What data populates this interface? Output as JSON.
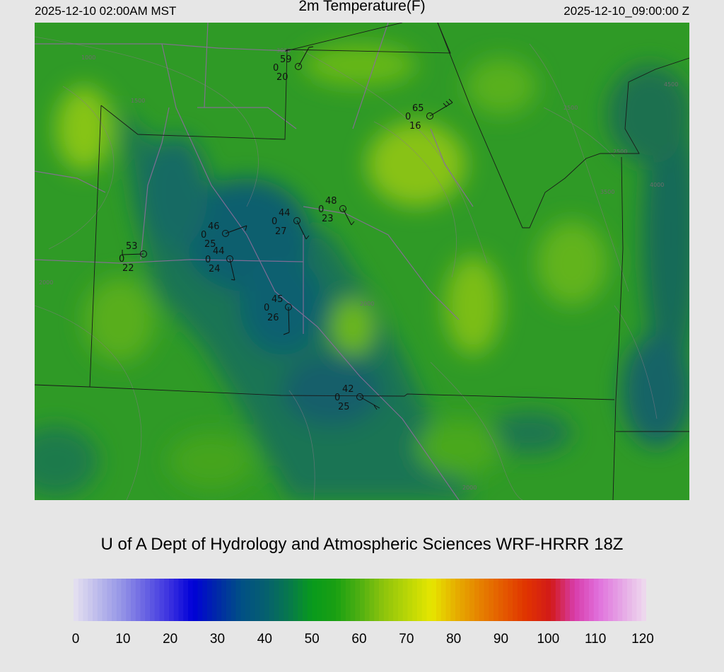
{
  "header": {
    "local_time": "2025-12-10 02:00AM MST",
    "title": "2m Temperature(F)",
    "valid_time": "2025-12-10_09:00:00 Z"
  },
  "credit": "U of A Dept of Hydrology and Atmospheric Sciences WRF-HRRR 18Z",
  "colorbar": {
    "min": 0,
    "max": 120,
    "ticks": [
      "0",
      "10",
      "20",
      "30",
      "40",
      "50",
      "60",
      "70",
      "80",
      "90",
      "100",
      "110",
      "120"
    ],
    "stops": [
      {
        "v": 0,
        "c": "#e6e2f0"
      },
      {
        "v": 10,
        "c": "#9595e6"
      },
      {
        "v": 20,
        "c": "#3c32e0"
      },
      {
        "v": 25,
        "c": "#0000d8"
      },
      {
        "v": 30,
        "c": "#0028a8"
      },
      {
        "v": 35,
        "c": "#004f86"
      },
      {
        "v": 40,
        "c": "#055f70"
      },
      {
        "v": 45,
        "c": "#07774e"
      },
      {
        "v": 50,
        "c": "#089a1c"
      },
      {
        "v": 55,
        "c": "#1aa012"
      },
      {
        "v": 60,
        "c": "#4fb012"
      },
      {
        "v": 65,
        "c": "#8ec40c"
      },
      {
        "v": 70,
        "c": "#b9d606"
      },
      {
        "v": 75,
        "c": "#e6e600"
      },
      {
        "v": 80,
        "c": "#e6b000"
      },
      {
        "v": 85,
        "c": "#e68200"
      },
      {
        "v": 90,
        "c": "#e45a00"
      },
      {
        "v": 95,
        "c": "#e03200"
      },
      {
        "v": 100,
        "c": "#d21a1a"
      },
      {
        "v": 105,
        "c": "#d83caa"
      },
      {
        "v": 110,
        "c": "#e070dc"
      },
      {
        "v": 115,
        "c": "#e6a8e6"
      },
      {
        "v": 120,
        "c": "#eedcee"
      }
    ]
  },
  "stations": [
    {
      "id": "stn-1",
      "temp": "59",
      "precip": "0",
      "dew": "20"
    },
    {
      "id": "stn-2",
      "temp": "65",
      "precip": "0",
      "dew": "16"
    },
    {
      "id": "stn-3",
      "temp": "48",
      "precip": "0",
      "dew": "23"
    },
    {
      "id": "stn-4",
      "temp": "44",
      "precip": "0",
      "dew": "27"
    },
    {
      "id": "stn-5",
      "temp": "46",
      "precip": "0",
      "dew": "25"
    },
    {
      "id": "stn-6",
      "temp": "53",
      "precip": "0",
      "dew": "22"
    },
    {
      "id": "stn-7",
      "temp": "44",
      "precip": "0",
      "dew": "24"
    },
    {
      "id": "stn-8",
      "temp": "45",
      "precip": "0",
      "dew": "26"
    },
    {
      "id": "stn-9",
      "temp": "42",
      "precip": "0",
      "dew": "25"
    }
  ],
  "contour_labels": [
    "1000",
    "1500",
    "2000",
    "2500",
    "3000",
    "3500",
    "4000",
    "4500"
  ]
}
